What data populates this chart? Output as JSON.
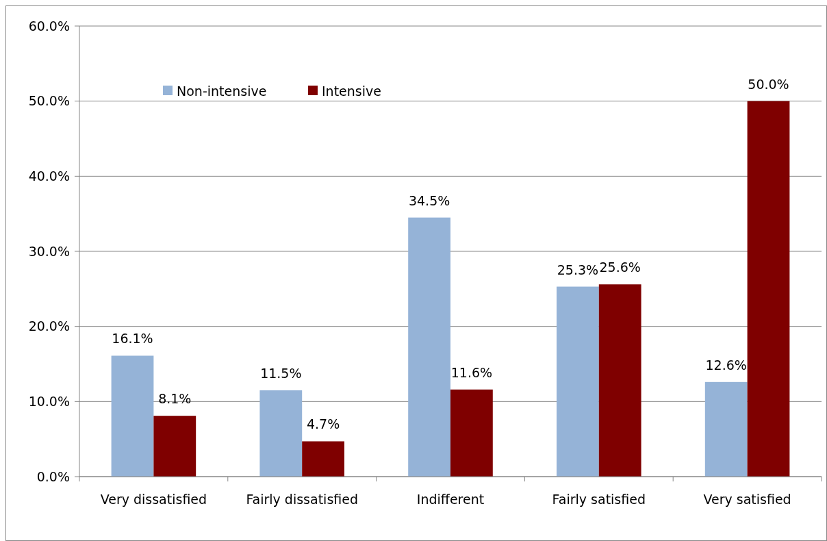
{
  "chart_data": {
    "type": "bar",
    "categories": [
      "Very dissatisfied",
      "Fairly dissatisfied",
      "Indifferent",
      "Fairly satisfied",
      "Very satisfied"
    ],
    "series": [
      {
        "name": "Non-intensive",
        "color": "#95b3d7",
        "values": [
          16.1,
          11.5,
          34.5,
          25.3,
          12.6
        ],
        "value_labels": [
          "16.1%",
          "11.5%",
          "34.5%",
          "25.3%",
          "12.6%"
        ]
      },
      {
        "name": "Intensive",
        "color": "#7f0000",
        "values": [
          8.1,
          4.7,
          11.6,
          25.6,
          50.0
        ],
        "value_labels": [
          "8.1%",
          "4.7%",
          "11.6%",
          "25.6%",
          "50.0%"
        ]
      }
    ],
    "ylim": [
      0,
      60
    ],
    "yticks": [
      {
        "value": 0,
        "label": "0.0%"
      },
      {
        "value": 10,
        "label": "10.0%"
      },
      {
        "value": 20,
        "label": "20.0%"
      },
      {
        "value": 30,
        "label": "30.0%"
      },
      {
        "value": 40,
        "label": "40.0%"
      },
      {
        "value": 50,
        "label": "50.0%"
      },
      {
        "value": 60,
        "label": "60.0%"
      }
    ],
    "grid": "y",
    "legend": "top left"
  }
}
